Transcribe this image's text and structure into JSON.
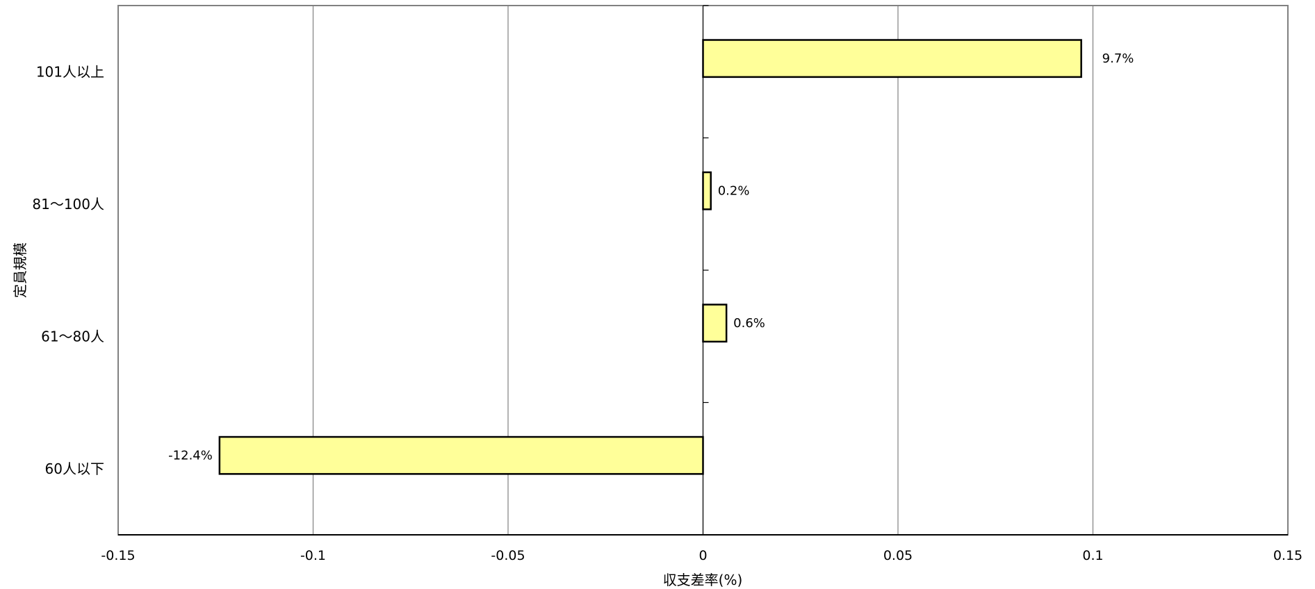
{
  "chart_data": {
    "type": "bar",
    "orientation": "horizontal",
    "categories": [
      "101人以上",
      "81～100人",
      "61～80人",
      "60人以下"
    ],
    "values": [
      0.097,
      0.002,
      0.006,
      -0.124
    ],
    "data_labels": [
      "9.7%",
      "0.2%",
      "0.6%",
      "-12.4%"
    ],
    "xlabel": "収支差率(%)",
    "ylabel": "定員規模",
    "xlim": [
      -0.15,
      0.15
    ],
    "xticks": [
      -0.15,
      -0.1,
      -0.05,
      0,
      0.05,
      0.1,
      0.15
    ],
    "xtick_labels": [
      "-0.15",
      "-0.1",
      "-0.05",
      "0",
      "0.05",
      "0.1",
      "0.15"
    ],
    "grid": "vertical",
    "legend": "none",
    "colors": {
      "bar_fill": "#FFFF99",
      "bar_stroke": "#000000",
      "grid": "#808080",
      "frame": "#808080"
    }
  }
}
